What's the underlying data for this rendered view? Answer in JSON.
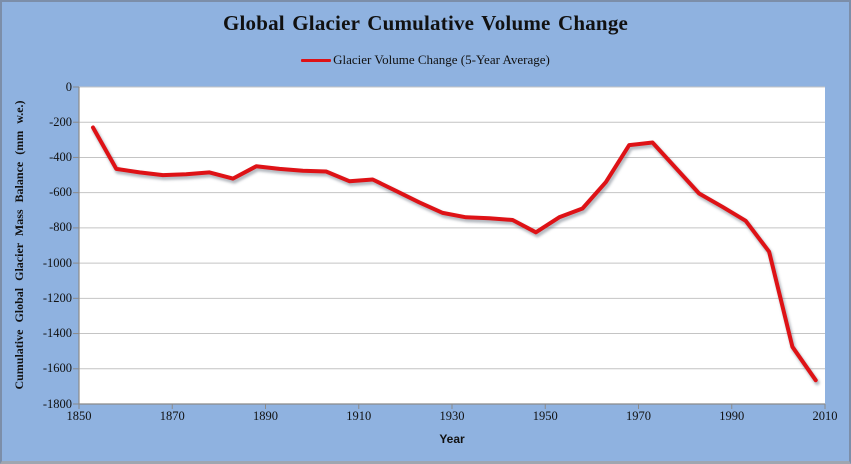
{
  "chart": {
    "title": "Global Glacier Cumulative Volume Change",
    "legend_label": "Glacier Volume Change (5-Year Average)",
    "x_axis_title": "Year",
    "y_axis_title": "Cumulative Global Glacier Mass Balance (mm w.e.)"
  },
  "colors": {
    "background": "#8FB2E0",
    "plot_background": "#FFFFFF",
    "gridline": "#C4C4C4",
    "axis": "#8A8A8A",
    "series_line": "#DE1216",
    "shadow": "rgba(90,100,115,0.45)",
    "text": "#111111"
  },
  "chart_data": {
    "type": "line",
    "title": "Global Glacier Cumulative Volume Change",
    "xlabel": "Year",
    "ylabel": "Cumulative Global Glacier Mass Balance (mm w.e.)",
    "legend": [
      "Glacier Volume Change (5-Year Average)"
    ],
    "legend_position": "top",
    "grid": "horizontal",
    "xlim": [
      1850,
      2010
    ],
    "ylim": [
      -1800,
      0
    ],
    "xticks": [
      1850,
      1870,
      1890,
      1910,
      1930,
      1950,
      1970,
      1990,
      2010
    ],
    "yticks": [
      0,
      -200,
      -400,
      -600,
      -800,
      -1000,
      -1200,
      -1400,
      -1600,
      -1800
    ],
    "series": [
      {
        "name": "Glacier Volume Change (5-Year Average)",
        "x": [
          1853,
          1858,
          1863,
          1868,
          1873,
          1878,
          1883,
          1888,
          1893,
          1898,
          1903,
          1908,
          1913,
          1918,
          1923,
          1928,
          1933,
          1938,
          1943,
          1948,
          1953,
          1958,
          1963,
          1968,
          1973,
          1978,
          1983,
          1988,
          1993,
          1998,
          2003,
          2008
        ],
        "y": [
          -230,
          -465,
          -485,
          -500,
          -495,
          -485,
          -520,
          -450,
          -465,
          -475,
          -480,
          -535,
          -525,
          -590,
          -655,
          -715,
          -740,
          -745,
          -755,
          -825,
          -740,
          -690,
          -540,
          -330,
          -315,
          -460,
          -605,
          -680,
          -760,
          -935,
          -1475,
          -1665
        ]
      }
    ]
  }
}
